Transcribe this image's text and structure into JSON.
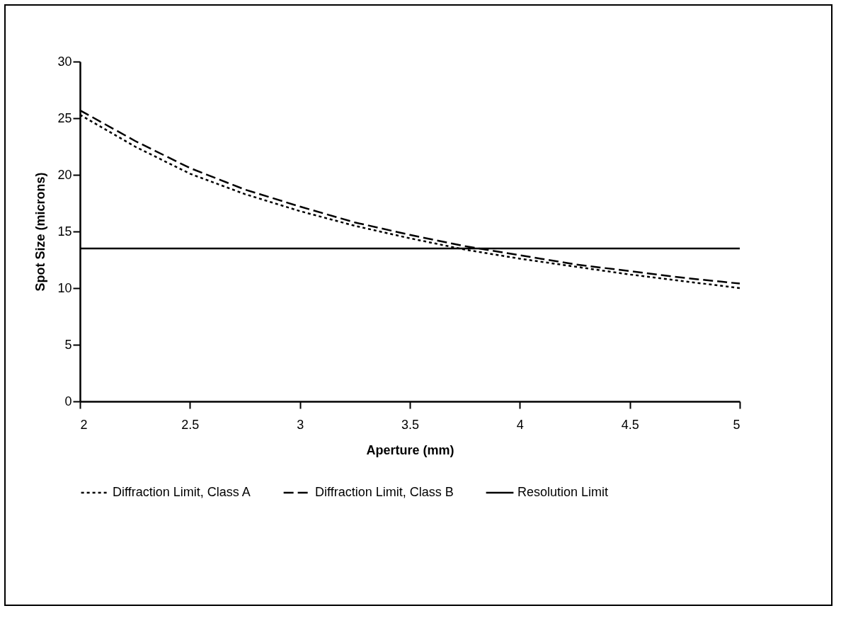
{
  "chart_data": {
    "type": "line",
    "xlabel": "Aperture   (mm)",
    "ylabel": "Spot  Size  (microns)",
    "xlim": [
      2,
      5
    ],
    "xticks": [
      2,
      2.5,
      3,
      3.5,
      4,
      4.5,
      5
    ],
    "ylim": [
      0,
      30
    ],
    "yticks": [
      0,
      5,
      10,
      15,
      20,
      25,
      30
    ],
    "grid": false,
    "legend": "bottom",
    "marker": "none",
    "x": [
      2,
      2.25,
      2.5,
      2.75,
      3,
      3.25,
      3.5,
      3.75,
      4,
      4.25,
      4.5,
      4.75,
      5
    ],
    "series": [
      {
        "name": "Diffraction Limit, Class A",
        "color": "#000000",
        "line_style": "dotted",
        "values": [
          25.3,
          22.5,
          20.1,
          18.3,
          16.8,
          15.5,
          14.4,
          13.4,
          12.6,
          11.9,
          11.2,
          10.6,
          10.0
        ]
      },
      {
        "name": "Diffraction Limit, Class B",
        "color": "#000000",
        "line_style": "dashed",
        "values": [
          25.7,
          23.0,
          20.6,
          18.7,
          17.2,
          15.8,
          14.7,
          13.7,
          12.9,
          12.1,
          11.5,
          10.9,
          10.4
        ]
      },
      {
        "name": "Resolution Limit",
        "color": "#000000",
        "line_style": "solid",
        "x": [
          2,
          5
        ],
        "values": [
          13.5,
          13.5
        ]
      }
    ]
  }
}
